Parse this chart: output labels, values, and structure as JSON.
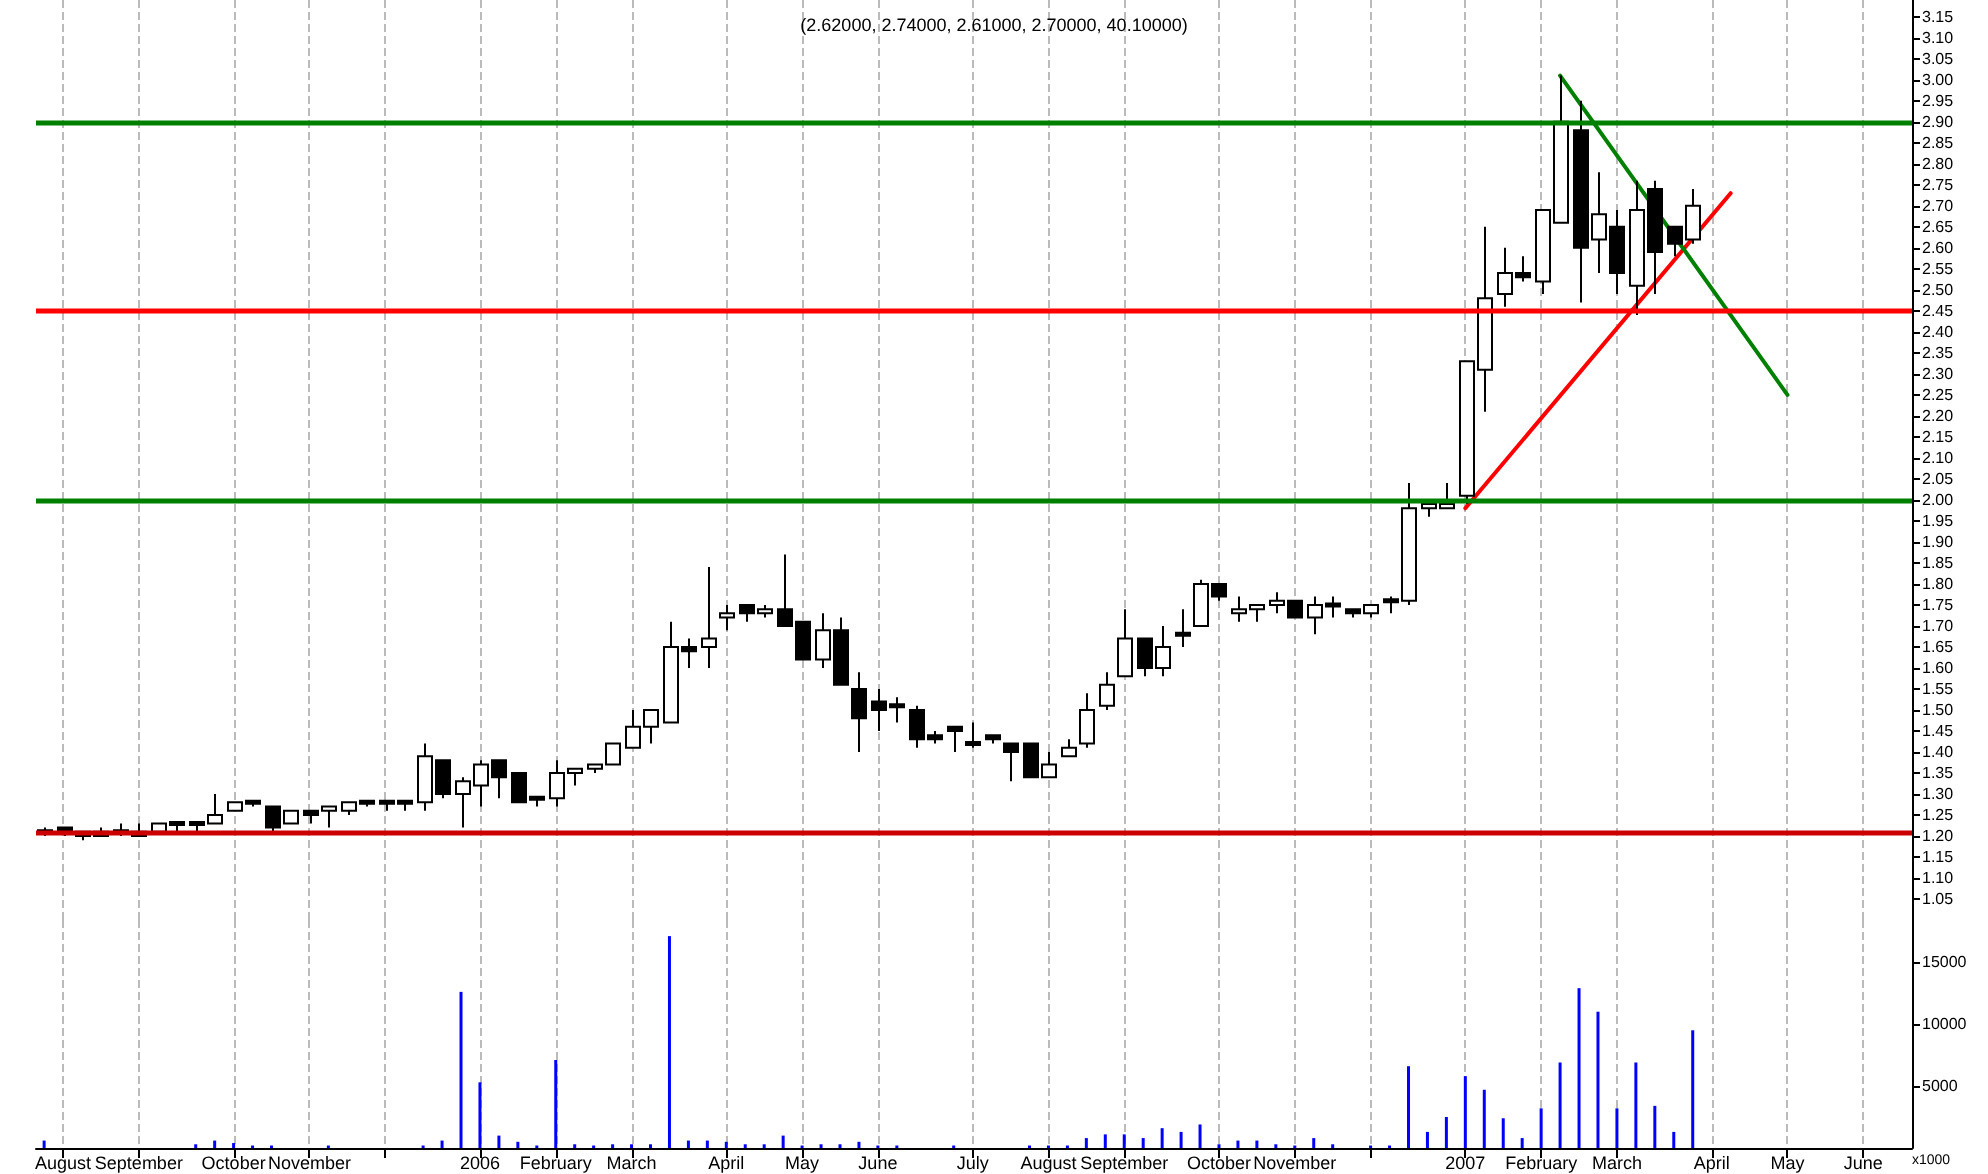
{
  "chart_data": [
    {
      "type": "candlestick",
      "title": "(2.62000, 2.74000, 2.61000, 2.70000, 40.10000)",
      "color": "#000000",
      "x": [
        "2005-07-29",
        "2005-08-05",
        "2005-08-12",
        "2005-08-19",
        "2005-08-26",
        "2005-09-02",
        "2005-09-09",
        "2005-09-16",
        "2005-09-23",
        "2005-09-30",
        "2005-10-07",
        "2005-10-14",
        "2005-10-21",
        "2005-10-28",
        "2005-11-04",
        "2005-11-11",
        "2005-11-18",
        "2005-11-25",
        "2005-12-02",
        "2005-12-09",
        "2005-12-16",
        "2005-12-23",
        "2005-12-30",
        "2006-01-06",
        "2006-01-13",
        "2006-01-20",
        "2006-01-27",
        "2006-02-03",
        "2006-02-10",
        "2006-02-17",
        "2006-02-24",
        "2006-03-03",
        "2006-03-10",
        "2006-03-17",
        "2006-03-24",
        "2006-03-31",
        "2006-04-07",
        "2006-04-14",
        "2006-04-21",
        "2006-04-28",
        "2006-05-05",
        "2006-05-12",
        "2006-05-19",
        "2006-05-26",
        "2006-06-02",
        "2006-06-09",
        "2006-06-16",
        "2006-06-23",
        "2006-06-30",
        "2006-07-07",
        "2006-07-14",
        "2006-07-21",
        "2006-07-28",
        "2006-08-04",
        "2006-08-11",
        "2006-08-18",
        "2006-08-25",
        "2006-09-01",
        "2006-09-08",
        "2006-09-15",
        "2006-09-22",
        "2006-09-29",
        "2006-10-06",
        "2006-10-13",
        "2006-10-20",
        "2006-10-27",
        "2006-11-03",
        "2006-11-10",
        "2006-11-17",
        "2006-11-24",
        "2006-12-01",
        "2006-12-08",
        "2006-12-15",
        "2006-12-22",
        "2006-12-29",
        "2007-01-05",
        "2007-01-12",
        "2007-01-19",
        "2007-01-26",
        "2007-02-02",
        "2007-02-09",
        "2007-02-16",
        "2007-02-23",
        "2007-03-02",
        "2007-03-09",
        "2007-03-16",
        "2007-03-23",
        "2007-03-30"
      ],
      "ohlc": [
        [
          1.21,
          1.22,
          1.2,
          1.21
        ],
        [
          1.22,
          1.22,
          1.2,
          1.21
        ],
        [
          1.2,
          1.21,
          1.19,
          1.21
        ],
        [
          1.2,
          1.22,
          1.2,
          1.21
        ],
        [
          1.21,
          1.23,
          1.2,
          1.21
        ],
        [
          1.21,
          1.23,
          1.2,
          1.2
        ],
        [
          1.21,
          1.23,
          1.21,
          1.23
        ],
        [
          1.23,
          1.23,
          1.21,
          1.23
        ],
        [
          1.23,
          1.23,
          1.21,
          1.23
        ],
        [
          1.23,
          1.3,
          1.23,
          1.25
        ],
        [
          1.26,
          1.28,
          1.26,
          1.28
        ],
        [
          1.28,
          1.28,
          1.27,
          1.28
        ],
        [
          1.27,
          1.27,
          1.21,
          1.22
        ],
        [
          1.23,
          1.26,
          1.23,
          1.26
        ],
        [
          1.26,
          1.26,
          1.23,
          1.25
        ],
        [
          1.26,
          1.27,
          1.22,
          1.27
        ],
        [
          1.26,
          1.28,
          1.25,
          1.28
        ],
        [
          1.28,
          1.28,
          1.27,
          1.28
        ],
        [
          1.28,
          1.28,
          1.26,
          1.28
        ],
        [
          1.28,
          1.28,
          1.26,
          1.28
        ],
        [
          1.28,
          1.42,
          1.26,
          1.39
        ],
        [
          1.38,
          1.38,
          1.29,
          1.3
        ],
        [
          1.3,
          1.34,
          1.22,
          1.33
        ],
        [
          1.32,
          1.38,
          1.27,
          1.37
        ],
        [
          1.38,
          1.38,
          1.29,
          1.34
        ],
        [
          1.35,
          1.35,
          1.28,
          1.28
        ],
        [
          1.29,
          1.29,
          1.27,
          1.29
        ],
        [
          1.29,
          1.38,
          1.27,
          1.35
        ],
        [
          1.35,
          1.36,
          1.32,
          1.36
        ],
        [
          1.36,
          1.37,
          1.35,
          1.37
        ],
        [
          1.37,
          1.42,
          1.37,
          1.42
        ],
        [
          1.41,
          1.5,
          1.41,
          1.46
        ],
        [
          1.46,
          1.5,
          1.42,
          1.5
        ],
        [
          1.47,
          1.71,
          1.47,
          1.65
        ],
        [
          1.65,
          1.67,
          1.6,
          1.64
        ],
        [
          1.65,
          1.84,
          1.6,
          1.67
        ],
        [
          1.72,
          1.75,
          1.69,
          1.73
        ],
        [
          1.75,
          1.75,
          1.71,
          1.73
        ],
        [
          1.73,
          1.75,
          1.72,
          1.74
        ],
        [
          1.74,
          1.87,
          1.7,
          1.7
        ],
        [
          1.71,
          1.71,
          1.62,
          1.62
        ],
        [
          1.62,
          1.73,
          1.6,
          1.69
        ],
        [
          1.69,
          1.72,
          1.56,
          1.56
        ],
        [
          1.55,
          1.59,
          1.4,
          1.48
        ],
        [
          1.52,
          1.55,
          1.45,
          1.5
        ],
        [
          1.51,
          1.53,
          1.47,
          1.51
        ],
        [
          1.5,
          1.51,
          1.41,
          1.43
        ],
        [
          1.44,
          1.45,
          1.42,
          1.43
        ],
        [
          1.46,
          1.46,
          1.4,
          1.45
        ],
        [
          1.42,
          1.47,
          1.41,
          1.42
        ],
        [
          1.44,
          1.44,
          1.42,
          1.43
        ],
        [
          1.42,
          1.42,
          1.33,
          1.4
        ],
        [
          1.42,
          1.42,
          1.34,
          1.34
        ],
        [
          1.34,
          1.4,
          1.34,
          1.37
        ],
        [
          1.39,
          1.43,
          1.39,
          1.41
        ],
        [
          1.42,
          1.54,
          1.41,
          1.5
        ],
        [
          1.51,
          1.59,
          1.5,
          1.56
        ],
        [
          1.58,
          1.74,
          1.58,
          1.67
        ],
        [
          1.67,
          1.67,
          1.58,
          1.6
        ],
        [
          1.6,
          1.7,
          1.58,
          1.65
        ],
        [
          1.68,
          1.74,
          1.65,
          1.68
        ],
        [
          1.7,
          1.81,
          1.7,
          1.8
        ],
        [
          1.8,
          1.8,
          1.76,
          1.77
        ],
        [
          1.73,
          1.77,
          1.71,
          1.74
        ],
        [
          1.74,
          1.75,
          1.71,
          1.75
        ],
        [
          1.75,
          1.78,
          1.73,
          1.76
        ],
        [
          1.76,
          1.76,
          1.72,
          1.72
        ],
        [
          1.72,
          1.77,
          1.68,
          1.75
        ],
        [
          1.75,
          1.77,
          1.72,
          1.75
        ],
        [
          1.74,
          1.74,
          1.72,
          1.73
        ],
        [
          1.73,
          1.75,
          1.72,
          1.75
        ],
        [
          1.76,
          1.77,
          1.73,
          1.76
        ],
        [
          1.76,
          2.04,
          1.75,
          1.98
        ],
        [
          1.98,
          2.0,
          1.96,
          1.99
        ],
        [
          1.98,
          2.04,
          1.98,
          1.99
        ],
        [
          2.01,
          2.33,
          1.99,
          2.33
        ],
        [
          2.31,
          2.65,
          2.21,
          2.48
        ],
        [
          2.49,
          2.6,
          2.46,
          2.54
        ],
        [
          2.54,
          2.58,
          2.52,
          2.53
        ],
        [
          2.52,
          2.69,
          2.49,
          2.69
        ],
        [
          2.66,
          3.01,
          2.66,
          2.9
        ],
        [
          2.88,
          2.95,
          2.47,
          2.6
        ],
        [
          2.62,
          2.78,
          2.54,
          2.68
        ],
        [
          2.65,
          2.69,
          2.49,
          2.54
        ],
        [
          2.51,
          2.76,
          2.44,
          2.69
        ],
        [
          2.74,
          2.76,
          2.49,
          2.59
        ],
        [
          2.65,
          2.65,
          2.58,
          2.61
        ],
        [
          2.62,
          2.74,
          2.61,
          2.7
        ]
      ],
      "series": [
        {
          "type": "line",
          "color": "#ff0000",
          "x": [
            "2007-01-05",
            "2007-04-13"
          ],
          "values": [
            1.98,
            2.73
          ]
        },
        {
          "type": "line",
          "color": "#008000",
          "x": [
            "2007-02-09",
            "2007-05-04"
          ],
          "values": [
            3.01,
            2.25
          ]
        }
      ],
      "ref_lines": [
        {
          "axis": "y",
          "value": 2.9,
          "color": "#008000"
        },
        {
          "axis": "y",
          "value": 2.45,
          "color": "#ff0000"
        },
        {
          "axis": "y",
          "value": 2.0,
          "color": "#008000"
        },
        {
          "axis": "y",
          "value": 1.21,
          "color": "#cc0000"
        }
      ],
      "xlim": [
        "2005-07-26",
        "2007-06-19"
      ],
      "xticks": [
        {
          "value": "2005-08-05",
          "label": null
        },
        {
          "value": "2005-09-02",
          "label": null
        },
        {
          "value": "2005-10-07",
          "label": null
        },
        {
          "value": "2005-11-04",
          "label": null
        },
        {
          "value": "2005-12-02",
          "label": null
        },
        {
          "value": "2006-01-06",
          "label": null
        },
        {
          "value": "2006-02-03",
          "label": null
        },
        {
          "value": "2006-03-03",
          "label": null
        },
        {
          "value": "2006-04-07",
          "label": null
        },
        {
          "value": "2006-05-05",
          "label": null
        },
        {
          "value": "2006-06-02",
          "label": null
        },
        {
          "value": "2006-07-07",
          "label": null
        },
        {
          "value": "2006-08-04",
          "label": null
        },
        {
          "value": "2006-09-01",
          "label": null
        },
        {
          "value": "2006-10-06",
          "label": null
        },
        {
          "value": "2006-11-03",
          "label": null
        },
        {
          "value": "2006-12-01",
          "label": null
        },
        {
          "value": "2007-01-05",
          "label": null
        },
        {
          "value": "2007-02-02",
          "label": null
        },
        {
          "value": "2007-03-02",
          "label": null
        },
        {
          "value": "2007-04-06",
          "label": null
        },
        {
          "value": "2007-05-04",
          "label": null
        },
        {
          "value": "2007-06-01",
          "label": null
        }
      ],
      "ylim": [
        1.0,
        3.19
      ],
      "yticks": [
        1.05,
        {
          "value": 1.1,
          "label": "1.10"
        },
        1.15,
        {
          "value": 1.2,
          "label": "1.20"
        },
        1.25,
        {
          "value": 1.3,
          "label": "1.30"
        },
        1.35,
        {
          "value": 1.4,
          "label": "1.40"
        },
        1.45,
        {
          "value": 1.5,
          "label": "1.50"
        },
        1.55,
        {
          "value": 1.6,
          "label": "1.60"
        },
        1.65,
        {
          "value": 1.7,
          "label": "1.70"
        },
        1.75,
        {
          "value": 1.8,
          "label": "1.80"
        },
        1.85,
        {
          "value": 1.9,
          "label": "1.90"
        },
        1.95,
        {
          "value": 2,
          "label": "2.00"
        },
        2.05,
        {
          "value": 2.1,
          "label": "2.10"
        },
        2.15,
        {
          "value": 2.2,
          "label": "2.20"
        },
        2.25,
        {
          "value": 2.3,
          "label": "2.30"
        },
        2.35,
        {
          "value": 2.4,
          "label": "2.40"
        },
        2.45,
        {
          "value": 2.5,
          "label": "2.50"
        },
        2.55,
        {
          "value": 2.6,
          "label": "2.60"
        },
        2.65,
        {
          "value": 2.7,
          "label": "2.70"
        },
        2.75,
        {
          "value": 2.8,
          "label": "2.80"
        },
        2.85,
        {
          "value": 2.9,
          "label": "2.90"
        },
        2.95,
        {
          "value": 3,
          "label": "3.00"
        },
        3.05,
        {
          "value": 3.1,
          "label": "3.10"
        },
        3.15
      ],
      "grid": "x",
      "tick_labels": "y"
    },
    {
      "type": "bar",
      "color": "#0000ff",
      "ylabel": "x1000",
      "x": [
        "2005-07-29",
        "2005-08-05",
        "2005-08-12",
        "2005-08-19",
        "2005-08-26",
        "2005-09-02",
        "2005-09-09",
        "2005-09-16",
        "2005-09-23",
        "2005-09-30",
        "2005-10-07",
        "2005-10-14",
        "2005-10-21",
        "2005-10-28",
        "2005-11-04",
        "2005-11-11",
        "2005-11-18",
        "2005-11-25",
        "2005-12-02",
        "2005-12-09",
        "2005-12-16",
        "2005-12-23",
        "2005-12-30",
        "2006-01-06",
        "2006-01-13",
        "2006-01-20",
        "2006-01-27",
        "2006-02-03",
        "2006-02-10",
        "2006-02-17",
        "2006-02-24",
        "2006-03-03",
        "2006-03-10",
        "2006-03-17",
        "2006-03-24",
        "2006-03-31",
        "2006-04-07",
        "2006-04-14",
        "2006-04-21",
        "2006-04-28",
        "2006-05-05",
        "2006-05-12",
        "2006-05-19",
        "2006-05-26",
        "2006-06-02",
        "2006-06-09",
        "2006-06-16",
        "2006-06-23",
        "2006-06-30",
        "2006-07-07",
        "2006-07-14",
        "2006-07-21",
        "2006-07-28",
        "2006-08-04",
        "2006-08-11",
        "2006-08-18",
        "2006-08-25",
        "2006-09-01",
        "2006-09-08",
        "2006-09-15",
        "2006-09-22",
        "2006-09-29",
        "2006-10-06",
        "2006-10-13",
        "2006-10-20",
        "2006-10-27",
        "2006-11-03",
        "2006-11-10",
        "2006-11-17",
        "2006-11-24",
        "2006-12-01",
        "2006-12-08",
        "2006-12-15",
        "2006-12-22",
        "2006-12-29",
        "2007-01-05",
        "2007-01-12",
        "2007-01-19",
        "2007-01-26",
        "2007-02-02",
        "2007-02-09",
        "2007-02-16",
        "2007-02-23",
        "2007-03-02",
        "2007-03-09",
        "2007-03-16",
        "2007-03-23",
        "2007-03-30"
      ],
      "values": [
        600,
        null,
        null,
        null,
        null,
        null,
        null,
        null,
        300,
        600,
        400,
        200,
        200,
        null,
        null,
        200,
        null,
        null,
        null,
        null,
        200,
        600,
        12600,
        5300,
        1000,
        500,
        200,
        7100,
        300,
        200,
        300,
        300,
        300,
        17100,
        600,
        600,
        500,
        300,
        300,
        1000,
        200,
        300,
        300,
        500,
        200,
        200,
        null,
        null,
        200,
        null,
        null,
        null,
        200,
        200,
        200,
        800,
        1100,
        1100,
        800,
        1600,
        1300,
        1900,
        300,
        600,
        600,
        300,
        200,
        800,
        300,
        null,
        200,
        200,
        6600,
        1300,
        2500,
        5800,
        4700,
        2400,
        800,
        3200,
        6900,
        12900,
        11000,
        3200,
        6900,
        3400,
        1300,
        9500
      ],
      "xlim": [
        "2005-07-26",
        "2007-06-19"
      ],
      "xticks": [
        {
          "value": "2005-08-05",
          "label": "August"
        },
        {
          "value": "2005-09-02",
          "label": "September"
        },
        {
          "value": "2005-10-07",
          "label": "October"
        },
        {
          "value": "2005-11-04",
          "label": "November"
        },
        {
          "value": "2005-12-02",
          "label": null
        },
        {
          "value": "2006-01-06",
          "label": "2006"
        },
        {
          "value": "2006-02-03",
          "label": "February"
        },
        {
          "value": "2006-03-03",
          "label": "March"
        },
        {
          "value": "2006-04-07",
          "label": "April"
        },
        {
          "value": "2006-05-05",
          "label": "May"
        },
        {
          "value": "2006-06-02",
          "label": "June"
        },
        {
          "value": "2006-07-07",
          "label": "July"
        },
        {
          "value": "2006-08-04",
          "label": "August"
        },
        {
          "value": "2006-09-01",
          "label": "September"
        },
        {
          "value": "2006-10-06",
          "label": "October"
        },
        {
          "value": "2006-11-03",
          "label": "November"
        },
        {
          "value": "2006-12-01",
          "label": null
        },
        {
          "value": "2007-01-05",
          "label": "2007"
        },
        {
          "value": "2007-02-02",
          "label": "February"
        },
        {
          "value": "2007-03-02",
          "label": "March"
        },
        {
          "value": "2007-04-06",
          "label": "April"
        },
        {
          "value": "2007-05-04",
          "label": "May"
        },
        {
          "value": "2007-06-01",
          "label": "June"
        }
      ],
      "ylim": [
        0,
        18400
      ],
      "yticks": [
        5000,
        10000,
        15000
      ],
      "grid": "x"
    }
  ]
}
